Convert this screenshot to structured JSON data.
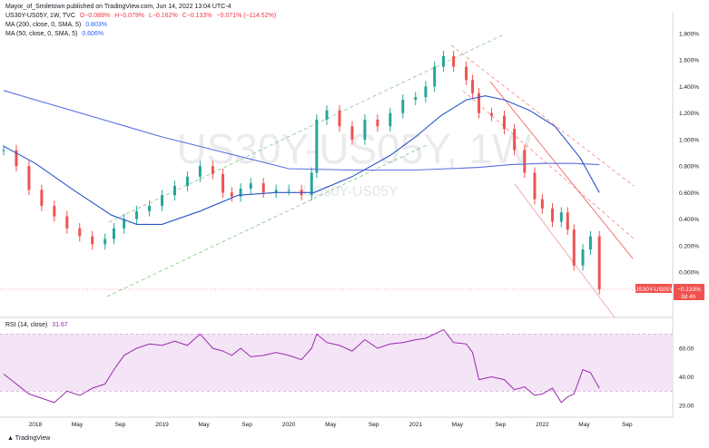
{
  "header": {
    "publisher": "Mayor_of_Smiletown published on TradingView.com, Jun 14, 2022 13:04 UTC-4",
    "symbol_line": {
      "symbol": "US30Y-US05Y, 1W, TVC",
      "open": "O−0.089%",
      "high": "H−0.079%",
      "low": "L−0.162%",
      "close": "C−0.133%",
      "change": "−0.071% (−114.52%)"
    },
    "ma200": {
      "label": "MA (200, close, 0, SMA, 5)",
      "value": "0.803%"
    },
    "ma50": {
      "label": "MA (50, close, 0, SMA, 5)",
      "value": "0.606%"
    },
    "rsi": {
      "label": "RSI (14, close)",
      "value": "31.67"
    }
  },
  "watermark": {
    "big": "US30Y-US05Y, 1W",
    "small": "US30Y-US05Y"
  },
  "price_tag": {
    "symbol": "US30Y-US05Y",
    "value": "−0.133%",
    "countdown": "3d 4h"
  },
  "footer": {
    "logo": "TradingView"
  },
  "colors": {
    "up": "#26a69a",
    "down": "#ef5350",
    "ma200": "#5b6ee1",
    "ma50": "#2a55c8",
    "rsi": "#9c27b0",
    "rsi_band": "#f3e5f5",
    "channel_up": "#4caf50",
    "channel_down": "#ef5350"
  },
  "chart_data": [
    {
      "type": "line",
      "title": "US30Y-US05Y, 1W, TVC",
      "x_ticks": [
        "2018",
        "May",
        "Sep",
        "2019",
        "May",
        "Sep",
        "2020",
        "May",
        "Sep",
        "2021",
        "May",
        "Sep",
        "2022",
        "May",
        "Sep"
      ],
      "x_tick_years": [
        2018.0,
        2018.33,
        2018.67,
        2019.0,
        2019.33,
        2019.67,
        2020.0,
        2020.33,
        2020.67,
        2021.0,
        2021.33,
        2021.67,
        2022.0,
        2022.33,
        2022.67
      ],
      "y_ticks": [
        "1.800%",
        "1.600%",
        "1.400%",
        "1.200%",
        "1.000%",
        "0.800%",
        "0.600%",
        "0.400%",
        "0.200%",
        "0.000%"
      ],
      "ylim": [
        -0.15,
        1.85
      ],
      "series": [
        {
          "name": "US30Y-US05Y",
          "x": [
            2017.75,
            2017.85,
            2017.95,
            2018.05,
            2018.15,
            2018.25,
            2018.35,
            2018.45,
            2018.55,
            2018.62,
            2018.7,
            2018.8,
            2018.9,
            2019.0,
            2019.1,
            2019.2,
            2019.3,
            2019.4,
            2019.48,
            2019.55,
            2019.62,
            2019.7,
            2019.8,
            2019.9,
            2020.0,
            2020.1,
            2020.18,
            2020.22,
            2020.3,
            2020.4,
            2020.5,
            2020.6,
            2020.7,
            2020.8,
            2020.9,
            2021.0,
            2021.08,
            2021.15,
            2021.22,
            2021.3,
            2021.4,
            2021.45,
            2021.5,
            2021.6,
            2021.7,
            2021.78,
            2021.86,
            2021.94,
            2022.0,
            2022.08,
            2022.15,
            2022.2,
            2022.25,
            2022.32,
            2022.38,
            2022.45
          ],
          "values": [
            0.92,
            0.8,
            0.62,
            0.5,
            0.42,
            0.33,
            0.27,
            0.21,
            0.25,
            0.33,
            0.4,
            0.46,
            0.5,
            0.58,
            0.65,
            0.72,
            0.8,
            0.74,
            0.6,
            0.57,
            0.63,
            0.67,
            0.6,
            0.62,
            0.62,
            0.58,
            0.75,
            1.15,
            1.22,
            1.1,
            1.0,
            1.15,
            1.1,
            1.2,
            1.3,
            1.32,
            1.4,
            1.55,
            1.63,
            1.55,
            1.45,
            1.35,
            1.2,
            1.18,
            1.08,
            0.92,
            0.75,
            0.55,
            0.48,
            0.38,
            0.45,
            0.32,
            0.05,
            0.17,
            0.27,
            -0.13
          ]
        },
        {
          "name": "MA (200, close, 0, SMA, 5)",
          "x": [
            2017.75,
            2018.0,
            2018.5,
            2019.0,
            2019.5,
            2020.0,
            2020.5,
            2021.0,
            2021.5,
            2021.75,
            2022.0,
            2022.25,
            2022.45
          ],
          "values": [
            1.37,
            1.3,
            1.16,
            1.02,
            0.9,
            0.78,
            0.77,
            0.77,
            0.79,
            0.81,
            0.82,
            0.82,
            0.81
          ]
        },
        {
          "name": "MA (50, close, 0, SMA, 5)",
          "x": [
            2017.75,
            2018.0,
            2018.3,
            2018.6,
            2018.8,
            2019.0,
            2019.3,
            2019.6,
            2019.9,
            2020.2,
            2020.5,
            2020.8,
            2021.0,
            2021.2,
            2021.4,
            2021.55,
            2021.7,
            2021.9,
            2022.1,
            2022.3,
            2022.45
          ],
          "values": [
            0.95,
            0.82,
            0.62,
            0.43,
            0.36,
            0.36,
            0.46,
            0.58,
            0.6,
            0.6,
            0.72,
            0.88,
            1.02,
            1.18,
            1.3,
            1.33,
            1.3,
            1.22,
            1.1,
            0.86,
            0.6
          ]
        }
      ],
      "last_value": "−0.133%"
    },
    {
      "type": "line",
      "title": "RSI (14, close)",
      "x_ticks": [
        "2018",
        "May",
        "Sep",
        "2019",
        "May",
        "Sep",
        "2020",
        "May",
        "Sep",
        "2021",
        "May",
        "Sep",
        "2022",
        "May",
        "Sep"
      ],
      "y_ticks": [
        "60.00",
        "40.00",
        "20.00"
      ],
      "ylim": [
        10,
        75
      ],
      "band": [
        30,
        70
      ],
      "series": [
        {
          "name": "RSI (14, close)",
          "x": [
            2017.75,
            2017.85,
            2017.95,
            2018.05,
            2018.15,
            2018.25,
            2018.35,
            2018.45,
            2018.55,
            2018.62,
            2018.7,
            2018.8,
            2018.9,
            2019.0,
            2019.1,
            2019.2,
            2019.3,
            2019.4,
            2019.48,
            2019.55,
            2019.62,
            2019.7,
            2019.8,
            2019.9,
            2020.0,
            2020.1,
            2020.18,
            2020.22,
            2020.3,
            2020.4,
            2020.5,
            2020.6,
            2020.7,
            2020.8,
            2020.9,
            2021.0,
            2021.08,
            2021.15,
            2021.22,
            2021.3,
            2021.4,
            2021.45,
            2021.5,
            2021.6,
            2021.7,
            2021.78,
            2021.86,
            2021.94,
            2022.0,
            2022.08,
            2022.15,
            2022.2,
            2022.25,
            2022.32,
            2022.38,
            2022.45
          ],
          "values": [
            42,
            35,
            28,
            25,
            22,
            30,
            27,
            32,
            35,
            45,
            55,
            60,
            63,
            62,
            65,
            62,
            70,
            60,
            58,
            55,
            60,
            54,
            55,
            57,
            55,
            52,
            60,
            70,
            64,
            62,
            58,
            66,
            60,
            63,
            64,
            66,
            67,
            70,
            73,
            64,
            63,
            57,
            38,
            40,
            38,
            31,
            33,
            27,
            28,
            32,
            22,
            26,
            28,
            45,
            43,
            32
          ]
        }
      ]
    }
  ]
}
